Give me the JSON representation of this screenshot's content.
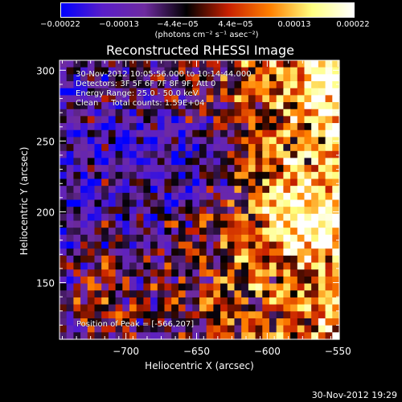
{
  "chart_data": {
    "type": "heatmap",
    "title": "Reconstructed RHESSI Image",
    "xlabel": "Heliocentric X (arcsec)",
    "ylabel": "Heliocentric Y (arcsec)",
    "xlim": [
      -747,
      -549
    ],
    "ylim": [
      110,
      307
    ],
    "x_ticks": [
      -700,
      -650,
      -600,
      -550
    ],
    "x_tick_labels": [
      "−700",
      "−650",
      "−600",
      "−550"
    ],
    "y_ticks": [
      150,
      200,
      250,
      300
    ],
    "y_tick_labels": [
      "150",
      "200",
      "250",
      "300"
    ],
    "colorbar": {
      "range": [
        -0.00022,
        0.00022
      ],
      "ticks": [
        -0.00022,
        -0.00013,
        -4.4e-05,
        4.4e-05,
        0.00013,
        0.00022
      ],
      "tick_labels": [
        "−0.00022",
        "−0.00013",
        "−4.4e−05",
        "4.4e−05",
        "0.00013",
        "0.00022"
      ],
      "unit_label": "(photons cm⁻² s⁻¹ asec⁻²)",
      "colors": [
        "#0000ff",
        "#5a1ec8",
        "#6e2ba0",
        "#000000",
        "#c82000",
        "#ff8000",
        "#ffff80",
        "#ffffff"
      ]
    },
    "info_lines": [
      "30-Nov-2012 10:05:56.000 to 10:14:44.000",
      "Detectors: 3F 5F 6F 7F 8F 9F, Att 0",
      "Energy Range: 25.0 - 50.0 keV",
      "Clean     Total counts: 1.59E+04"
    ],
    "peak_label": "Position of Peak = [-566,207]",
    "peak": [
      -566,
      207
    ]
  },
  "timestamp": "30-Nov-2012 19:29"
}
